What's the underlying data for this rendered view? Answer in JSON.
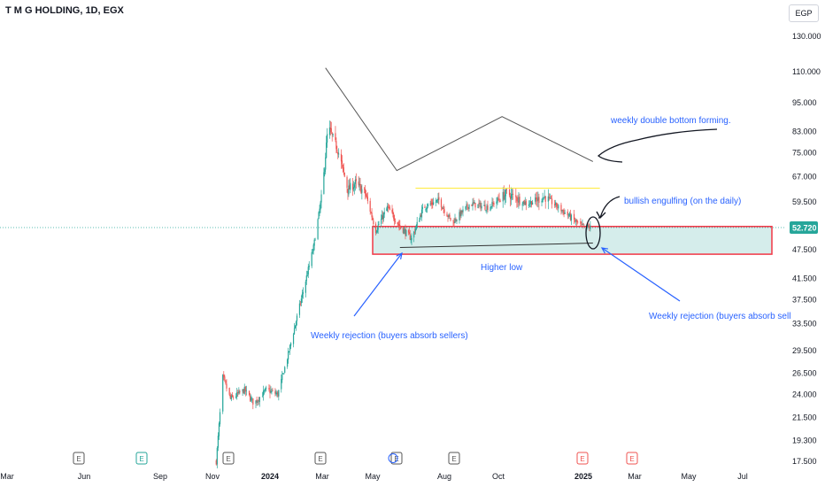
{
  "header": {
    "title": "T M G HOLDING, 1D, EGX"
  },
  "currency_button": "EGP",
  "colors": {
    "up": "#26a69a",
    "down": "#ef5350",
    "annotation": "#2962ff",
    "zone_fill": "#b2dfdb",
    "zone_border": "#f23645",
    "resistance": "#ffeb3b",
    "price_tag": "#26a69a",
    "pattern_line": "#555555"
  },
  "chart_data": {
    "type": "candlestick",
    "title": "T M G HOLDING, 1D, EGX",
    "yscale": "log",
    "ylim": [
      16.5,
      150
    ],
    "y_ticks": [
      "130.000",
      "110.000",
      "95.000",
      "83.000",
      "75.000",
      "67.000",
      "59.500",
      "52.720",
      "47.500",
      "41.500",
      "37.500",
      "33.500",
      "29.500",
      "26.500",
      "24.000",
      "21.500",
      "19.300",
      "17.500"
    ],
    "x_ticks": [
      "Mar",
      "Jun",
      "Sep",
      "Nov",
      "2024",
      "Mar",
      "May",
      "Aug",
      "Oct",
      "2025",
      "Mar",
      "May",
      "Jul"
    ],
    "bold_x_ticks": [
      "2024",
      "2025"
    ],
    "last_price": "52.720",
    "price_keypoints": [
      {
        "date": "2023-11-05",
        "price": 17.5
      },
      {
        "date": "2023-11-12",
        "price": 26
      },
      {
        "date": "2023-11-20",
        "price": 23.5
      },
      {
        "date": "2023-12-05",
        "price": 24.5
      },
      {
        "date": "2023-12-15",
        "price": 23
      },
      {
        "date": "2023-12-28",
        "price": 24.5
      },
      {
        "date": "2024-01-10",
        "price": 24
      },
      {
        "date": "2024-01-22",
        "price": 29
      },
      {
        "date": "2024-02-05",
        "price": 37
      },
      {
        "date": "2024-02-20",
        "price": 48
      },
      {
        "date": "2024-03-01",
        "price": 62
      },
      {
        "date": "2024-03-08",
        "price": 85
      },
      {
        "date": "2024-03-20",
        "price": 76
      },
      {
        "date": "2024-04-01",
        "price": 63
      },
      {
        "date": "2024-04-10",
        "price": 65
      },
      {
        "date": "2024-04-22",
        "price": 62
      },
      {
        "date": "2024-05-05",
        "price": 52
      },
      {
        "date": "2024-05-20",
        "price": 58
      },
      {
        "date": "2024-06-05",
        "price": 53
      },
      {
        "date": "2024-06-20",
        "price": 50
      },
      {
        "date": "2024-07-05",
        "price": 58
      },
      {
        "date": "2024-07-25",
        "price": 60
      },
      {
        "date": "2024-08-10",
        "price": 54
      },
      {
        "date": "2024-08-30",
        "price": 59
      },
      {
        "date": "2024-09-20",
        "price": 58
      },
      {
        "date": "2024-10-10",
        "price": 62
      },
      {
        "date": "2024-11-01",
        "price": 59
      },
      {
        "date": "2024-11-20",
        "price": 61
      },
      {
        "date": "2024-12-10",
        "price": 57
      },
      {
        "date": "2024-12-30",
        "price": 53
      },
      {
        "date": "2025-01-10",
        "price": 52.72
      }
    ],
    "demand_zone": {
      "date_from": "2024-05-01",
      "date_to": "2025-07-31",
      "price_low": 46.5,
      "price_high": 53
    },
    "resistance_line": {
      "date_from": "2024-06-25",
      "date_to": "2025-01-20",
      "price": 63.5
    },
    "double_bottom_pattern": [
      {
        "date": "2024-03-05",
        "price": 112
      },
      {
        "date": "2024-06-01",
        "price": 69
      },
      {
        "date": "2024-10-05",
        "price": 89
      },
      {
        "date": "2025-01-12",
        "price": 72
      }
    ],
    "higher_low_line": [
      {
        "date": "2024-06-05",
        "price": 48
      },
      {
        "date": "2025-01-12",
        "price": 49
      }
    ],
    "event_badges": [
      "E",
      "E",
      "E",
      "E",
      "E",
      "E",
      "E",
      "E"
    ]
  },
  "annotations": {
    "double_bottom": "weekly double bottom forming.",
    "engulfing": "bullish engulfing (on the daily)",
    "higher_low": "Higher low",
    "rejection_left": "Weekly rejection (buyers absorb sellers)",
    "rejection_right": "Weekly rejection (buyers absorb sell"
  }
}
